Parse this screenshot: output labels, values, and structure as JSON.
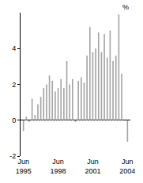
{
  "chart_data": {
    "type": "bar",
    "y_label": "%",
    "categories": [
      "Jun 1995",
      null,
      null,
      null,
      null,
      null,
      null,
      null,
      null,
      null,
      null,
      null,
      "Jun 1998",
      null,
      null,
      null,
      null,
      null,
      null,
      null,
      null,
      null,
      null,
      null,
      "Jun 2001",
      null,
      null,
      null,
      null,
      null,
      null,
      null,
      null,
      null,
      null,
      null,
      "Jun 2004"
    ],
    "values": [
      -0.6,
      0.2,
      -0.1,
      1.2,
      0.3,
      0.9,
      1.3,
      1.8,
      2.0,
      2.5,
      2.2,
      1.6,
      1.8,
      2.3,
      1.8,
      3.3,
      2.0,
      2.3,
      -0.1,
      2.2,
      2.4,
      2.1,
      3.6,
      5.2,
      3.8,
      4.0,
      4.9,
      3.8,
      4.8,
      3.5,
      5.0,
      3.3,
      3.6,
      5.9,
      2.6,
      0.0,
      -1.2
    ],
    "color": "#a6a6a6",
    "ylim": [
      -2,
      6
    ],
    "yticks": [
      -2,
      0,
      2,
      4
    ],
    "grid": false
  }
}
